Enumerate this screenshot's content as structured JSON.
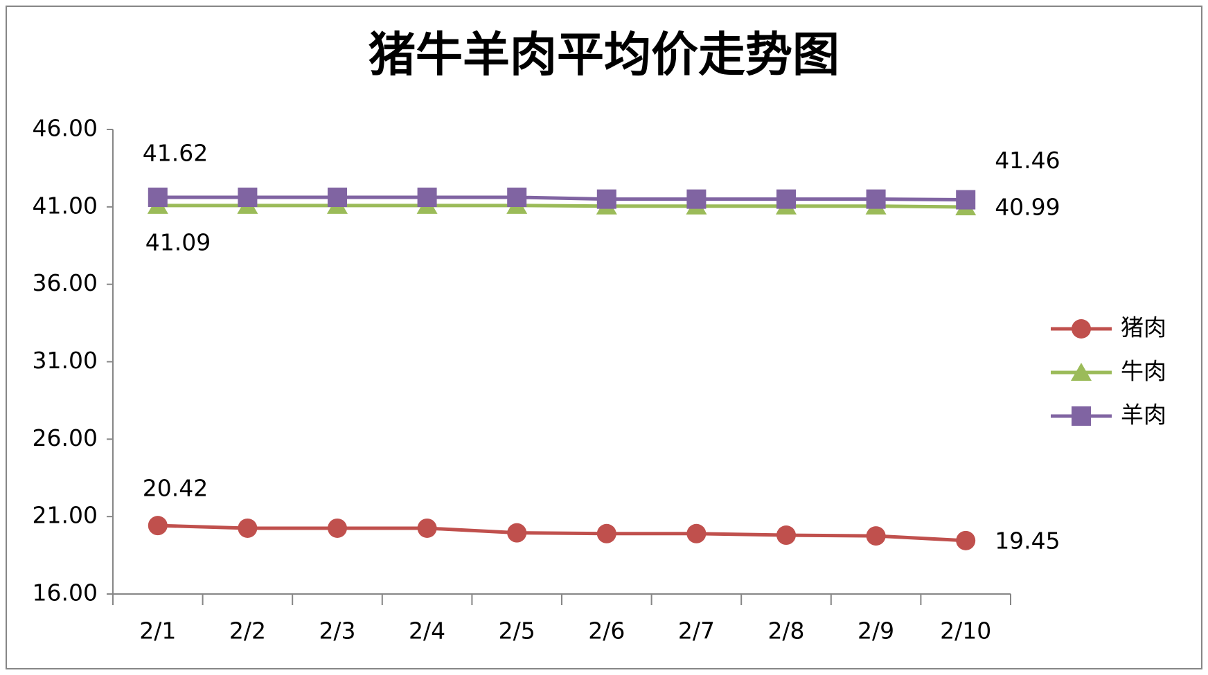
{
  "chart_data": {
    "type": "line",
    "title": "猪牛羊肉平均价走势图",
    "categories": [
      "2/1",
      "2/2",
      "2/3",
      "2/4",
      "2/5",
      "2/6",
      "2/7",
      "2/8",
      "2/9",
      "2/10"
    ],
    "series": [
      {
        "name": "猪肉",
        "color": "#c0504d",
        "marker": "circle",
        "values": [
          20.42,
          20.25,
          20.25,
          20.25,
          19.95,
          19.9,
          19.9,
          19.8,
          19.75,
          19.45
        ]
      },
      {
        "name": "牛肉",
        "color": "#9bbb59",
        "marker": "triangle",
        "values": [
          41.09,
          41.09,
          41.09,
          41.09,
          41.09,
          41.05,
          41.05,
          41.05,
          41.05,
          40.99
        ]
      },
      {
        "name": "羊肉",
        "color": "#8064a2",
        "marker": "square",
        "values": [
          41.62,
          41.62,
          41.62,
          41.62,
          41.62,
          41.5,
          41.5,
          41.5,
          41.5,
          41.46
        ]
      }
    ],
    "ylim": [
      16,
      46
    ],
    "yticks": [
      {
        "value": 16,
        "label": "16.00"
      },
      {
        "value": 21,
        "label": "21.00"
      },
      {
        "value": 26,
        "label": "26.00"
      },
      {
        "value": 31,
        "label": "31.00"
      },
      {
        "value": 36,
        "label": "36.00"
      },
      {
        "value": 41,
        "label": "41.00"
      },
      {
        "value": 46,
        "label": "46.00"
      }
    ],
    "grid": false,
    "legend": "right"
  }
}
